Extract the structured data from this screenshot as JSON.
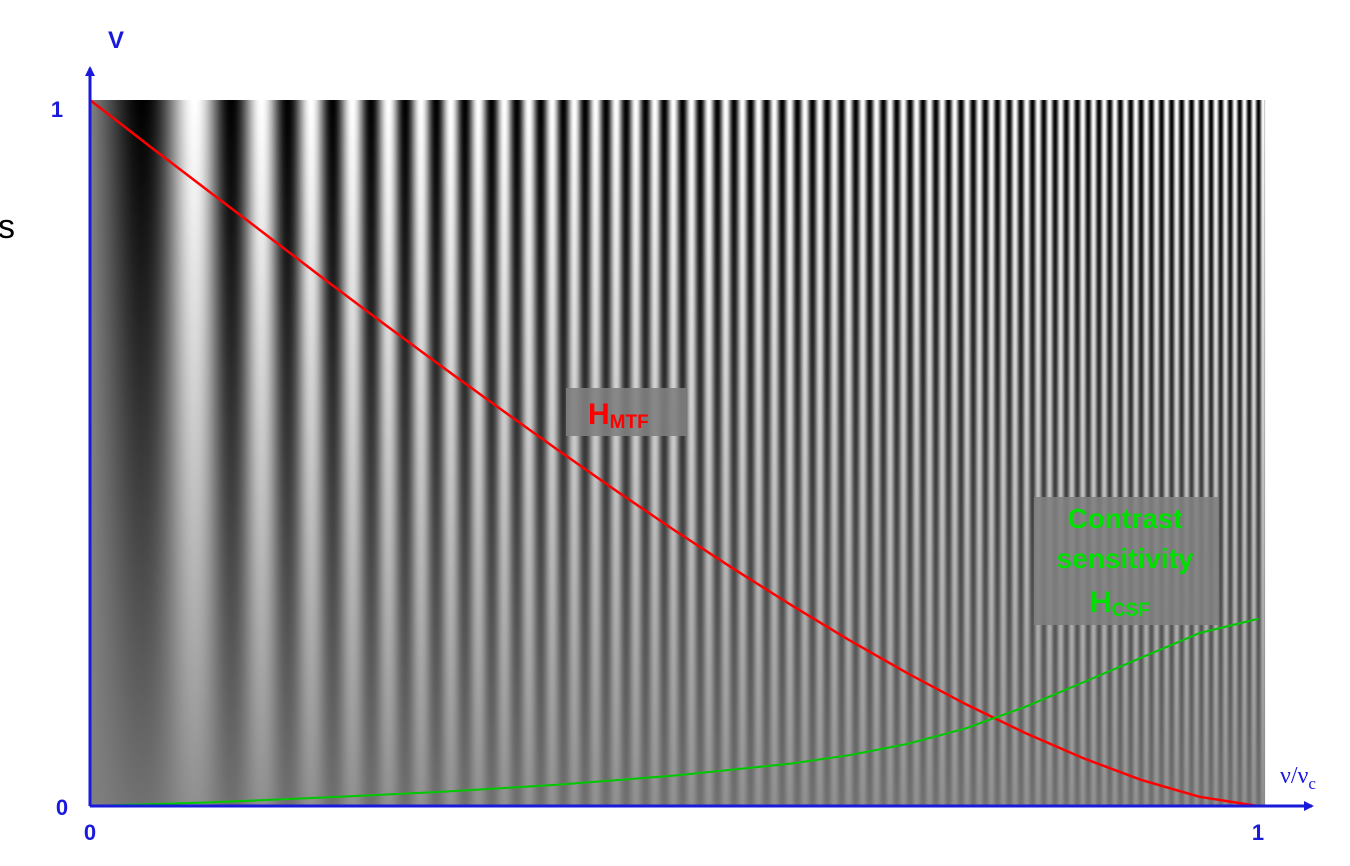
{
  "stray_text": "s",
  "colors": {
    "axis": "#1a1adb",
    "mtf": "#ff0000",
    "csf": "#00c800",
    "label_box": "#808080"
  },
  "chart_data": {
    "type": "line",
    "background": "sinusoidal grating, spatial frequency increasing left to right, contrast increasing top to bottom",
    "y_axis_label": "V",
    "x_axis_label": {
      "main": "ν/ν",
      "sub": "c"
    },
    "xlim": [
      0,
      1
    ],
    "ylim": [
      0,
      1
    ],
    "x_ticks": [
      "0",
      "1"
    ],
    "y_ticks": [
      "0",
      "1"
    ],
    "series": [
      {
        "name": "HMTF",
        "label_main": "H",
        "label_sub": "MTF",
        "color": "#ff0000",
        "x": [
          0,
          0.05,
          0.1,
          0.15,
          0.2,
          0.25,
          0.3,
          0.35,
          0.4,
          0.45,
          0.5,
          0.55,
          0.6,
          0.65,
          0.7,
          0.75,
          0.8,
          0.85,
          0.9,
          0.95,
          1.0
        ],
        "y": [
          1.0,
          0.936,
          0.873,
          0.81,
          0.747,
          0.685,
          0.624,
          0.564,
          0.505,
          0.447,
          0.391,
          0.337,
          0.285,
          0.235,
          0.188,
          0.144,
          0.104,
          0.068,
          0.037,
          0.013,
          0.0
        ]
      },
      {
        "name": "Contrast sensitivity HCSF",
        "label_lines": [
          "Contrast",
          "sensitivity"
        ],
        "label_main": "H",
        "label_sub": "CSF",
        "color": "#00c800",
        "x": [
          0,
          0.1,
          0.2,
          0.3,
          0.4,
          0.5,
          0.6,
          0.65,
          0.7,
          0.75,
          0.8,
          0.85,
          0.9,
          0.95,
          1.0
        ],
        "y": [
          0.0,
          0.005,
          0.012,
          0.02,
          0.03,
          0.043,
          0.06,
          0.072,
          0.088,
          0.11,
          0.14,
          0.175,
          0.21,
          0.245,
          0.265
        ]
      }
    ]
  }
}
